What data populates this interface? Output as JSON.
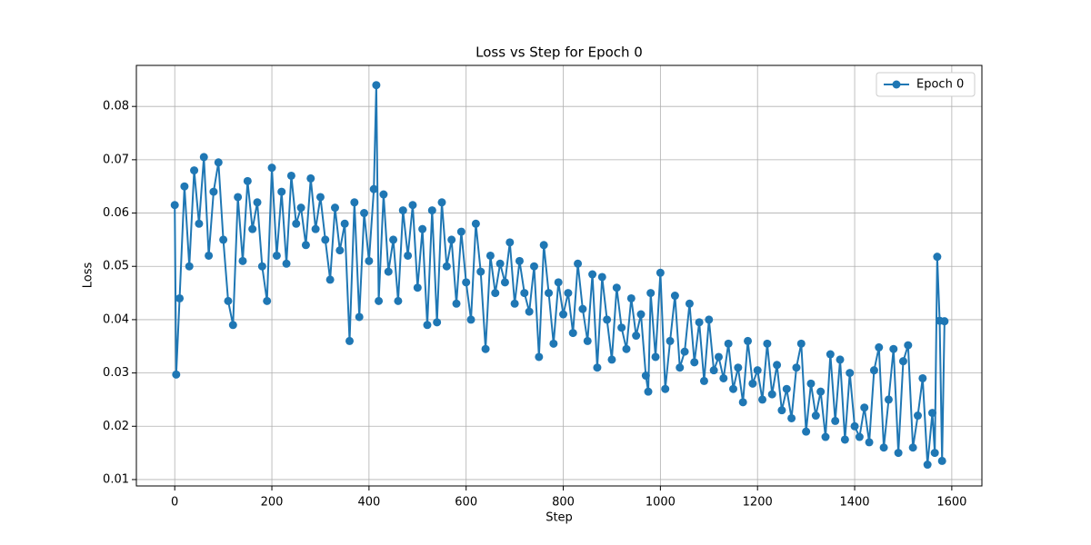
{
  "chart_data": {
    "type": "line",
    "title": "Loss vs Step for Epoch 0",
    "x_label": "Step",
    "y_label": "Loss",
    "x": [
      0,
      3,
      10,
      20,
      30,
      40,
      50,
      60,
      70,
      80,
      90,
      100,
      110,
      120,
      130,
      140,
      150,
      160,
      170,
      180,
      190,
      200,
      210,
      220,
      230,
      240,
      250,
      260,
      270,
      280,
      290,
      300,
      310,
      320,
      330,
      340,
      350,
      360,
      370,
      380,
      390,
      400,
      410,
      415,
      420,
      430,
      440,
      450,
      460,
      470,
      480,
      490,
      500,
      510,
      520,
      530,
      540,
      550,
      560,
      570,
      580,
      590,
      600,
      610,
      620,
      630,
      640,
      650,
      660,
      670,
      680,
      690,
      700,
      710,
      720,
      730,
      740,
      750,
      760,
      770,
      780,
      790,
      800,
      810,
      820,
      830,
      840,
      850,
      860,
      870,
      880,
      890,
      900,
      910,
      920,
      930,
      940,
      950,
      960,
      970,
      975,
      980,
      990,
      1000,
      1010,
      1020,
      1030,
      1040,
      1050,
      1060,
      1070,
      1080,
      1090,
      1100,
      1110,
      1120,
      1130,
      1140,
      1150,
      1160,
      1170,
      1180,
      1190,
      1200,
      1210,
      1220,
      1230,
      1240,
      1250,
      1260,
      1270,
      1280,
      1290,
      1300,
      1310,
      1320,
      1330,
      1340,
      1350,
      1360,
      1370,
      1380,
      1390,
      1400,
      1410,
      1420,
      1430,
      1440,
      1450,
      1460,
      1470,
      1480,
      1490,
      1500,
      1510,
      1520,
      1530,
      1540,
      1550,
      1560,
      1565,
      1570,
      1575,
      1580,
      1585
    ],
    "series": [
      {
        "name": "Epoch 0",
        "color": "#1f77b4",
        "values": [
          0.0615,
          0.0297,
          0.044,
          0.065,
          0.05,
          0.068,
          0.058,
          0.0705,
          0.052,
          0.064,
          0.0695,
          0.055,
          0.0435,
          0.039,
          0.063,
          0.051,
          0.066,
          0.057,
          0.062,
          0.05,
          0.0435,
          0.0685,
          0.052,
          0.064,
          0.0505,
          0.067,
          0.058,
          0.061,
          0.054,
          0.0665,
          0.057,
          0.063,
          0.055,
          0.0475,
          0.061,
          0.053,
          0.058,
          0.036,
          0.062,
          0.0405,
          0.06,
          0.051,
          0.0645,
          0.084,
          0.0435,
          0.0635,
          0.049,
          0.055,
          0.0435,
          0.0605,
          0.052,
          0.0615,
          0.046,
          0.057,
          0.039,
          0.0605,
          0.0395,
          0.062,
          0.05,
          0.055,
          0.043,
          0.0565,
          0.047,
          0.04,
          0.058,
          0.049,
          0.0345,
          0.052,
          0.045,
          0.0505,
          0.047,
          0.0545,
          0.043,
          0.051,
          0.045,
          0.0415,
          0.05,
          0.033,
          0.054,
          0.045,
          0.0355,
          0.047,
          0.041,
          0.045,
          0.0375,
          0.0505,
          0.042,
          0.036,
          0.0485,
          0.031,
          0.048,
          0.04,
          0.0325,
          0.046,
          0.0385,
          0.0345,
          0.044,
          0.037,
          0.041,
          0.0295,
          0.0265,
          0.045,
          0.033,
          0.0488,
          0.027,
          0.036,
          0.0445,
          0.031,
          0.034,
          0.043,
          0.032,
          0.0395,
          0.0285,
          0.04,
          0.0305,
          0.033,
          0.029,
          0.0355,
          0.027,
          0.031,
          0.0245,
          0.036,
          0.028,
          0.0305,
          0.025,
          0.0355,
          0.026,
          0.0315,
          0.023,
          0.027,
          0.0215,
          0.031,
          0.0355,
          0.019,
          0.028,
          0.022,
          0.0265,
          0.018,
          0.0335,
          0.021,
          0.0325,
          0.0175,
          0.03,
          0.02,
          0.018,
          0.0235,
          0.017,
          0.0305,
          0.0348,
          0.016,
          0.025,
          0.0345,
          0.015,
          0.0322,
          0.0352,
          0.016,
          0.022,
          0.029,
          0.0128,
          0.0225,
          0.015,
          0.0518,
          0.0398,
          0.0135,
          0.0397
        ]
      }
    ],
    "xlim": [
      -79,
      1662
    ],
    "ylim": [
      0.0088,
      0.0877
    ],
    "xticks": [
      0,
      200,
      400,
      600,
      800,
      1000,
      1200,
      1400,
      1600
    ],
    "yticks": [
      0.01,
      0.02,
      0.03,
      0.04,
      0.05,
      0.06,
      0.07,
      0.08
    ],
    "grid": true,
    "legend": "upper right"
  }
}
